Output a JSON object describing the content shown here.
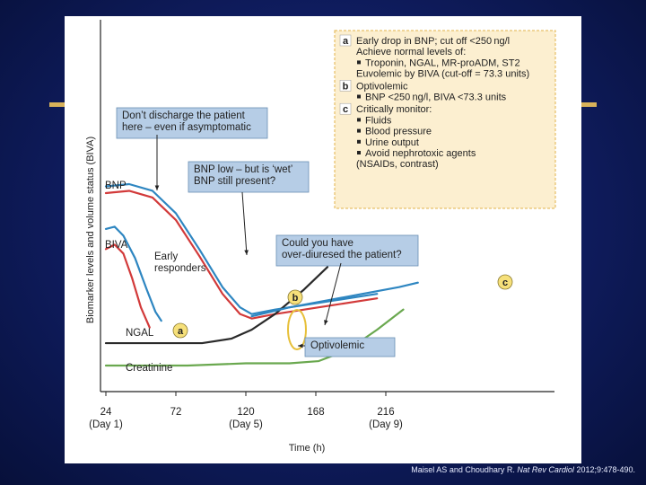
{
  "chart_data": {
    "type": "line",
    "xlabel": "Time (h)",
    "ylabel": "Biomarker levels and volume status (BIVA)",
    "x_ticks": [
      {
        "value": 24,
        "label": "24",
        "sub": "(Day 1)"
      },
      {
        "value": 72,
        "label": "72",
        "sub": ""
      },
      {
        "value": 120,
        "label": "120",
        "sub": "(Day 5)"
      },
      {
        "value": 168,
        "label": "168",
        "sub": ""
      },
      {
        "value": 216,
        "label": "216",
        "sub": "(Day 9)"
      }
    ],
    "xlim": [
      24,
      238
    ],
    "ylim": [
      0,
      100
    ],
    "series": [
      {
        "name": "BNP",
        "color": "#2e86c1",
        "x": [
          24,
          40,
          56,
          72,
          88,
          104,
          116,
          124,
          140,
          160,
          180,
          200,
          210
        ],
        "y": [
          84,
          85,
          82,
          72,
          56,
          39,
          30,
          27,
          29,
          31,
          33,
          35,
          36
        ]
      },
      {
        "name": "BIVA",
        "color": "#d23a3a",
        "x": [
          24,
          40,
          56,
          72,
          88,
          104,
          116,
          124,
          140,
          160,
          180,
          200,
          210
        ],
        "y": [
          81,
          82,
          79,
          69,
          53,
          36,
          27,
          25,
          27,
          29,
          31,
          33,
          34
        ]
      },
      {
        "name": "Early responders (BNP)",
        "color": "#2e86c1",
        "x": [
          24,
          30,
          36,
          44,
          52,
          58,
          62
        ],
        "y": [
          65,
          66,
          62,
          52,
          38,
          28,
          24
        ]
      },
      {
        "name": "Early responders (BIVA)",
        "color": "#d23a3a",
        "x": [
          24,
          30,
          36,
          42,
          48,
          52,
          54
        ],
        "y": [
          56,
          58,
          54,
          43,
          30,
          24,
          21
        ]
      },
      {
        "name": "NGAL",
        "color": "#2a2a2a",
        "x": [
          24,
          60,
          90,
          110,
          124,
          140,
          160,
          176
        ],
        "y": [
          14,
          14,
          14,
          16,
          20,
          27,
          38,
          48
        ]
      },
      {
        "name": "Creatinine",
        "color": "#6aa84f",
        "x": [
          24,
          80,
          120,
          150,
          170,
          190,
          210,
          228
        ],
        "y": [
          4,
          4,
          5,
          5,
          6,
          11,
          20,
          29
        ]
      },
      {
        "name": "Optivolemic",
        "color": "#2e86c1",
        "x": [
          124,
          150,
          175,
          200,
          225,
          238
        ],
        "y": [
          26,
          30,
          33,
          36,
          39,
          41
        ]
      }
    ],
    "labels": {
      "bnp": "BNP",
      "biva": "BIVA",
      "early": [
        "Early",
        "responders"
      ],
      "ngal": "NGAL",
      "creatinine": "Creatinine"
    },
    "markers": {
      "a": "a",
      "b": "b",
      "c": "c"
    },
    "callouts": {
      "discharge": [
        "Don’t discharge the patient",
        "here – even if asymptomatic"
      ],
      "wet": [
        "BNP low – but is ‘wet’",
        "BNP still present?"
      ],
      "overdiuresed": [
        "Could you have",
        "over-diuresed the patient?"
      ],
      "optivolemic": "Optivolemic"
    },
    "info_box": [
      {
        "letter": "a",
        "lines": [
          {
            "text": "Early drop in BNP; cut off <250 ng/l",
            "bullet": false
          },
          {
            "text": "Achieve normal levels of:",
            "bullet": false
          },
          {
            "text": "Troponin, NGAL, MR-proADM, ST2",
            "bullet": true
          },
          {
            "text": "Euvolemic by BIVA (cut-off = 73.3 units)",
            "bullet": false
          }
        ]
      },
      {
        "letter": "b",
        "lines": [
          {
            "text": "Optivolemic",
            "bullet": false
          },
          {
            "text": "BNP <250 ng/l, BIVA <73.3 units",
            "bullet": true
          }
        ]
      },
      {
        "letter": "c",
        "lines": [
          {
            "text": "Critically monitor:",
            "bullet": false
          },
          {
            "text": "Fluids",
            "bullet": true
          },
          {
            "text": "Blood pressure",
            "bullet": true
          },
          {
            "text": "Urine output",
            "bullet": true
          },
          {
            "text": "Avoid nephrotoxic agents",
            "bullet": true
          },
          {
            "text": "(NSAIDs, contrast)",
            "bullet": false
          }
        ]
      }
    ]
  },
  "credit": {
    "prefix": "Maisel AS and Choudhary R.",
    "journal": "Nat Rev Cardiol",
    "suffix": "2012;9:478-490."
  }
}
